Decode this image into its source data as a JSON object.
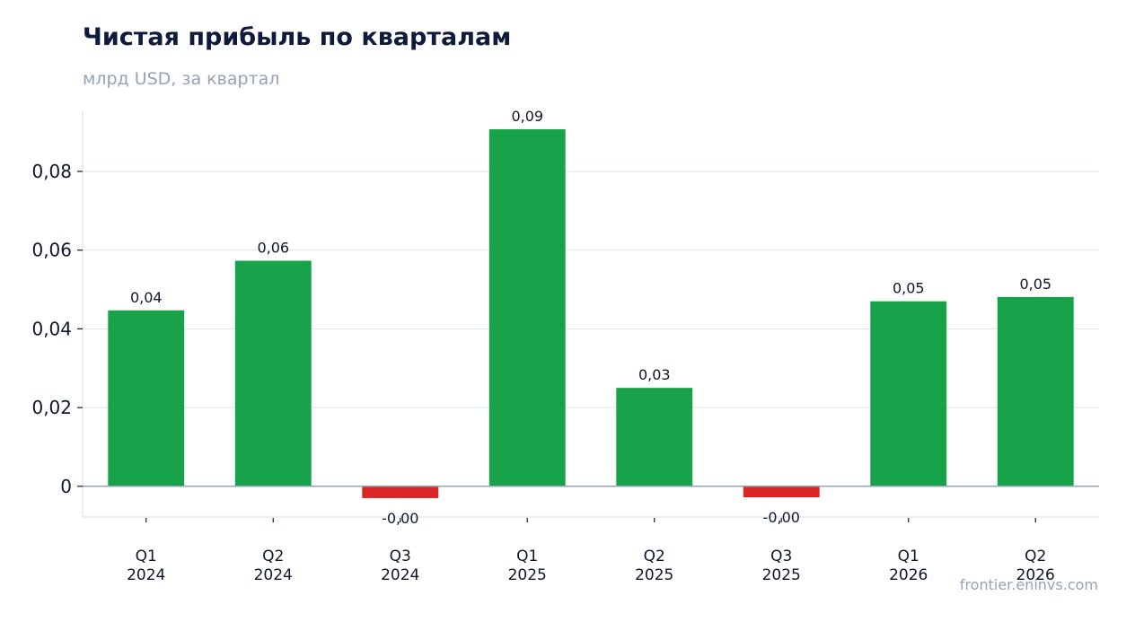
{
  "chart_data": {
    "type": "bar",
    "title": "Чистая прибыль по кварталам",
    "subtitle": "млрд USD, за квартал",
    "categories": [
      [
        "Q1",
        "2024"
      ],
      [
        "Q2",
        "2024"
      ],
      [
        "Q3",
        "2024"
      ],
      [
        "Q1",
        "2025"
      ],
      [
        "Q2",
        "2025"
      ],
      [
        "Q3",
        "2025"
      ],
      [
        "Q1",
        "2026"
      ],
      [
        "Q2",
        "2026"
      ]
    ],
    "values": [
      0.0447,
      0.0573,
      -0.003,
      0.0907,
      0.025,
      -0.0028,
      0.047,
      0.0481
    ],
    "data_labels": [
      "0,04",
      "0,06",
      "-0,00",
      "0,09",
      "0,03",
      "-0,00",
      "0,05",
      "0,05"
    ],
    "y_ticks": [
      0,
      0.02,
      0.04,
      0.06,
      0.08
    ],
    "y_tick_labels": [
      "0",
      "0,02",
      "0,04",
      "0,06",
      "0,08"
    ],
    "ylim": [
      -0.0078,
      0.0955
    ],
    "grid": true,
    "colors": {
      "positive": "#18a34a",
      "negative": "#dc2626",
      "grid": "#e2e8f0",
      "zero_line": "#94a3b8",
      "text": "#0f172a"
    }
  },
  "watermark": "frontier.eninvs.com"
}
